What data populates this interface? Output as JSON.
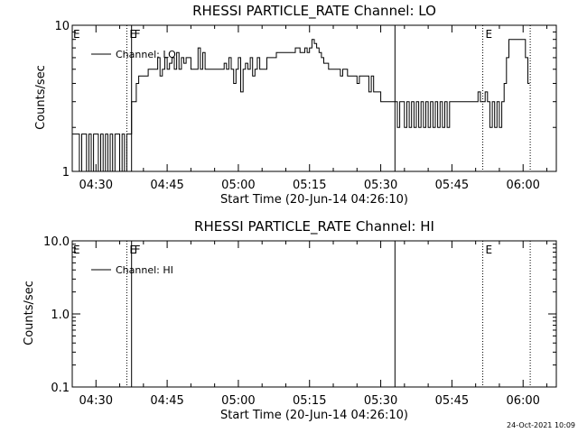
{
  "stamp": "24-Oct-2021 10:09",
  "chart_data": [
    {
      "type": "line",
      "title": "RHESSI PARTICLE_RATE Channel: LO",
      "xlabel": "Start Time (20-Jun-14 04:26:10)",
      "ylabel": "Counts/sec",
      "yscale": "log",
      "ylim": [
        1,
        10
      ],
      "ytick_labels": [
        "1",
        "10"
      ],
      "xlim": [
        "04:25",
        "06:07"
      ],
      "xtick_labels": [
        "04:30",
        "04:45",
        "05:00",
        "05:15",
        "05:30",
        "05:45",
        "06:00"
      ],
      "legend": {
        "position": "top-left",
        "entries": [
          "Channel: LO"
        ]
      },
      "markers": [
        {
          "time": "04:36:30",
          "style": "dotted",
          "label": "E"
        },
        {
          "time": "04:37:30",
          "style": "solid",
          "label": "F"
        },
        {
          "time": "05:33:00",
          "style": "solid",
          "label": ""
        },
        {
          "time": "05:51:30",
          "style": "dotted",
          "label": "E"
        },
        {
          "time": "06:01:30",
          "style": "dotted",
          "label": ""
        }
      ],
      "series": [
        {
          "x": [
            "04:25:00",
            "04:26:30",
            "04:27:00",
            "04:27:30",
            "04:28:00",
            "04:28:30",
            "04:29:00",
            "04:29:30",
            "04:30:00",
            "04:30:30",
            "04:31:00",
            "04:31:30",
            "04:32:00",
            "04:32:30",
            "04:33:00",
            "04:33:30",
            "04:34:00",
            "04:34:30",
            "04:35:00",
            "04:35:30",
            "04:36:00",
            "04:36:30",
            "04:37:00",
            "04:37:30",
            "04:38:00",
            "04:38:30",
            "04:39:00",
            "04:40:00",
            "04:41:00",
            "04:42:00",
            "04:42:30",
            "04:43:00",
            "04:43:30",
            "04:44:00",
            "04:44:30",
            "04:45:00",
            "04:45:30",
            "04:46:00",
            "04:46:30",
            "04:47:00",
            "04:47:30",
            "04:48:00",
            "04:48:30",
            "04:49:00",
            "04:50:00",
            "04:51:00",
            "04:51:30",
            "04:52:00",
            "04:52:30",
            "04:53:00",
            "04:53:30",
            "04:54:00",
            "04:55:00",
            "04:56:00",
            "04:57:00",
            "04:57:30",
            "04:58:00",
            "04:58:30",
            "04:59:00",
            "04:59:30",
            "05:00:00",
            "05:00:30",
            "05:01:00",
            "05:01:30",
            "05:02:00",
            "05:02:30",
            "05:03:00",
            "05:03:30",
            "05:04:00",
            "05:04:30",
            "05:05:00",
            "05:06:00",
            "05:07:00",
            "05:08:00",
            "05:09:00",
            "05:10:00",
            "05:11:00",
            "05:12:00",
            "05:13:00",
            "05:14:00",
            "05:14:30",
            "05:15:00",
            "05:15:30",
            "05:16:00",
            "05:16:30",
            "05:17:00",
            "05:17:30",
            "05:18:00",
            "05:19:00",
            "05:20:00",
            "05:21:00",
            "05:21:30",
            "05:22:00",
            "05:23:00",
            "05:24:00",
            "05:25:00",
            "05:25:30",
            "05:26:00",
            "05:27:00",
            "05:27:30",
            "05:28:00",
            "05:28:30",
            "05:29:00",
            "05:30:00",
            "05:31:00",
            "05:32:00",
            "05:33:00",
            "05:33:30",
            "05:34:00",
            "05:34:30",
            "05:35:00",
            "05:35:30",
            "05:36:00",
            "05:36:30",
            "05:37:00",
            "05:37:30",
            "05:38:00",
            "05:38:30",
            "05:39:00",
            "05:39:30",
            "05:40:00",
            "05:40:30",
            "05:41:00",
            "05:41:30",
            "05:42:00",
            "05:42:30",
            "05:43:00",
            "05:43:30",
            "05:44:00",
            "05:44:30",
            "05:45:00",
            "05:46:00",
            "05:47:00",
            "05:48:00",
            "05:49:00",
            "05:50:00",
            "05:50:30",
            "05:51:00",
            "05:51:30",
            "05:52:00",
            "05:52:30",
            "05:53:00",
            "05:53:30",
            "05:54:00",
            "05:54:30",
            "05:55:00",
            "05:55:30",
            "05:56:00",
            "05:56:30",
            "05:57:00",
            "05:58:00",
            "05:59:00",
            "06:00:00",
            "06:00:30",
            "06:01:00"
          ],
          "y": [
            1.8,
            1.0,
            1.8,
            1.8,
            1.0,
            1.8,
            1.0,
            1.8,
            1.8,
            1.0,
            1.8,
            1.0,
            1.8,
            1.0,
            1.8,
            1.0,
            1.8,
            1.8,
            1.0,
            1.8,
            1.0,
            1.8,
            1.8,
            3.0,
            3.0,
            4.0,
            4.5,
            4.5,
            5.0,
            5.0,
            5.0,
            6.0,
            4.5,
            5.0,
            6.0,
            5.0,
            5.5,
            6.0,
            5.0,
            6.5,
            5.0,
            6.0,
            5.5,
            6.0,
            5.0,
            5.0,
            7.0,
            5.0,
            6.5,
            5.0,
            5.0,
            5.0,
            5.0,
            5.0,
            5.5,
            5.0,
            6.0,
            5.0,
            4.0,
            5.0,
            6.0,
            3.5,
            5.0,
            5.5,
            5.0,
            6.0,
            4.5,
            5.0,
            6.0,
            5.0,
            5.0,
            6.0,
            6.0,
            6.5,
            6.5,
            6.5,
            6.5,
            7.0,
            6.5,
            7.0,
            6.5,
            7.0,
            8.0,
            7.5,
            7.0,
            6.5,
            6.0,
            5.5,
            5.0,
            5.0,
            5.0,
            4.5,
            5.0,
            4.5,
            4.5,
            4.0,
            4.5,
            4.5,
            4.5,
            3.5,
            4.5,
            3.5,
            3.5,
            3.0,
            3.0,
            3.0,
            3.0,
            2.0,
            3.0,
            3.0,
            2.0,
            3.0,
            2.0,
            3.0,
            2.0,
            3.0,
            2.0,
            3.0,
            2.0,
            3.0,
            2.0,
            3.0,
            2.0,
            3.0,
            2.0,
            3.0,
            2.0,
            3.0,
            2.0,
            3.0,
            3.0,
            3.0,
            3.0,
            3.0,
            3.0,
            3.0,
            3.5,
            3.0,
            3.0,
            3.5,
            3.0,
            2.0,
            3.0,
            2.0,
            3.0,
            2.0,
            3.0,
            4.0,
            6.0,
            8.0,
            8.0,
            8.0,
            8.0,
            6.0,
            4.0
          ]
        }
      ]
    },
    {
      "type": "line",
      "title": "RHESSI PARTICLE_RATE Channel: HI",
      "xlabel": "Start Time (20-Jun-14 04:26:10)",
      "ylabel": "Counts/sec",
      "yscale": "log",
      "ylim": [
        0.1,
        10
      ],
      "ytick_labels": [
        "0.1",
        "1.0",
        "10.0"
      ],
      "xlim": [
        "04:25",
        "06:07"
      ],
      "xtick_labels": [
        "04:30",
        "04:45",
        "05:00",
        "05:15",
        "05:30",
        "05:45",
        "06:00"
      ],
      "legend": {
        "position": "top-left",
        "entries": [
          "Channel: HI"
        ]
      },
      "markers": [
        {
          "time": "04:36:30",
          "style": "dotted",
          "label": "E"
        },
        {
          "time": "04:37:30",
          "style": "solid",
          "label": "F"
        },
        {
          "time": "05:33:00",
          "style": "solid",
          "label": ""
        },
        {
          "time": "05:51:30",
          "style": "dotted",
          "label": "E"
        },
        {
          "time": "06:01:30",
          "style": "dotted",
          "label": ""
        }
      ],
      "series": [
        {
          "x": [],
          "y": []
        }
      ]
    }
  ]
}
